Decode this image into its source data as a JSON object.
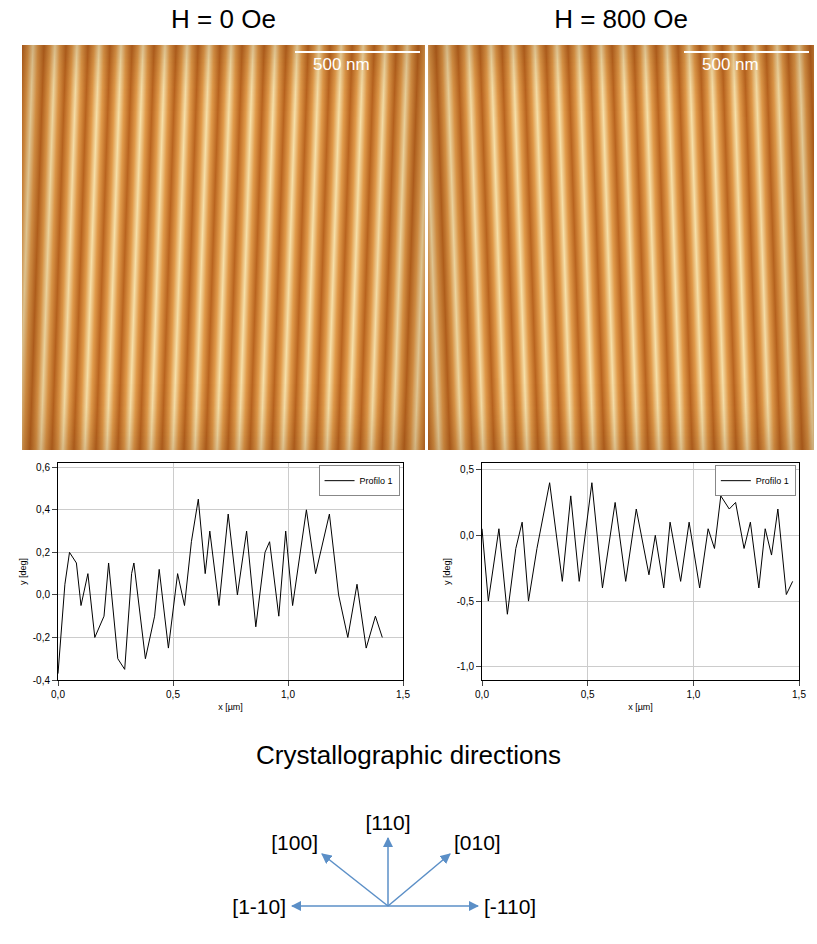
{
  "panels": [
    {
      "title": "H = 0 Oe",
      "scale_bar": "500 nm"
    },
    {
      "title": "H = 800 Oe",
      "scale_bar": "500 nm"
    }
  ],
  "chart_data": [
    {
      "type": "line",
      "xlabel": "x [µm]",
      "ylabel": "y [deg]",
      "x": [
        0,
        0.03,
        0.05,
        0.08,
        0.1,
        0.13,
        0.16,
        0.2,
        0.22,
        0.26,
        0.29,
        0.32,
        0.33,
        0.38,
        0.42,
        0.44,
        0.48,
        0.52,
        0.55,
        0.58,
        0.61,
        0.64,
        0.66,
        0.7,
        0.74,
        0.78,
        0.82,
        0.86,
        0.9,
        0.92,
        0.96,
        0.99,
        1.02,
        1.08,
        1.12,
        1.18,
        1.22,
        1.26,
        1.3,
        1.34,
        1.38,
        1.41
      ],
      "series": [
        {
          "name": "Profilo 1",
          "color": "#000000",
          "values": [
            -0.37,
            0.05,
            0.2,
            0.15,
            -0.05,
            0.1,
            -0.2,
            -0.1,
            0.15,
            -0.3,
            -0.35,
            0.1,
            0.15,
            -0.3,
            -0.1,
            0.12,
            -0.25,
            0.1,
            -0.05,
            0.25,
            0.45,
            0.1,
            0.3,
            -0.05,
            0.38,
            0.0,
            0.3,
            -0.15,
            0.2,
            0.25,
            -0.1,
            0.3,
            -0.05,
            0.4,
            0.1,
            0.38,
            0.0,
            -0.2,
            0.05,
            -0.25,
            -0.1,
            -0.2
          ]
        }
      ],
      "xlim": [
        0,
        1.5
      ],
      "xticks": [
        {
          "value": 0,
          "label": "0,0"
        },
        {
          "value": 0.5,
          "label": "0,5"
        },
        {
          "value": 1,
          "label": "1,0"
        },
        {
          "value": 1.5,
          "label": "1,5"
        }
      ],
      "ylim": [
        -0.4,
        0.62
      ],
      "yticks": [
        {
          "value": -0.4,
          "label": "-0,4"
        },
        {
          "value": -0.2,
          "label": "-0,2"
        },
        {
          "value": 0,
          "label": "0,0"
        },
        {
          "value": 0.2,
          "label": "0,2"
        },
        {
          "value": 0.4,
          "label": "0,4"
        },
        {
          "value": 0.6,
          "label": "0,6"
        }
      ],
      "grid": true,
      "legend": "top right"
    },
    {
      "type": "line",
      "xlabel": "x [µm]",
      "ylabel": "y [deg]",
      "x": [
        0,
        0.03,
        0.08,
        0.12,
        0.16,
        0.19,
        0.22,
        0.26,
        0.32,
        0.38,
        0.42,
        0.46,
        0.52,
        0.57,
        0.63,
        0.68,
        0.73,
        0.79,
        0.82,
        0.86,
        0.89,
        0.94,
        0.98,
        1.03,
        1.07,
        1.1,
        1.13,
        1.17,
        1.2,
        1.24,
        1.27,
        1.31,
        1.34,
        1.37,
        1.4,
        1.44,
        1.47
      ],
      "series": [
        {
          "name": "Profilo 1",
          "color": "#000000",
          "values": [
            0.05,
            -0.5,
            0.05,
            -0.6,
            -0.1,
            0.1,
            -0.5,
            -0.1,
            0.4,
            -0.35,
            0.3,
            -0.35,
            0.4,
            -0.4,
            0.25,
            -0.35,
            0.2,
            -0.3,
            0.0,
            -0.4,
            0.1,
            -0.35,
            0.1,
            -0.4,
            0.05,
            -0.1,
            0.3,
            0.2,
            0.25,
            -0.1,
            0.1,
            -0.4,
            0.05,
            -0.15,
            0.2,
            -0.45,
            -0.35
          ]
        }
      ],
      "xlim": [
        0,
        1.5
      ],
      "xticks": [
        {
          "value": 0,
          "label": "0,0"
        },
        {
          "value": 0.5,
          "label": "0,5"
        },
        {
          "value": 1,
          "label": "1,0"
        },
        {
          "value": 1.5,
          "label": "1,5"
        }
      ],
      "ylim": [
        -1.1,
        0.55
      ],
      "yticks": [
        {
          "value": -1,
          "label": "-1,0"
        },
        {
          "value": -0.5,
          "label": "-0,5"
        },
        {
          "value": 0,
          "label": "0,0"
        },
        {
          "value": 0.5,
          "label": "0,5"
        }
      ],
      "grid": true,
      "legend": "top right"
    }
  ],
  "diagram": {
    "title": "Crystallographic directions",
    "directions": [
      "[110]",
      "[100]",
      "[010]",
      "[1-10]",
      "[-110]"
    ]
  }
}
